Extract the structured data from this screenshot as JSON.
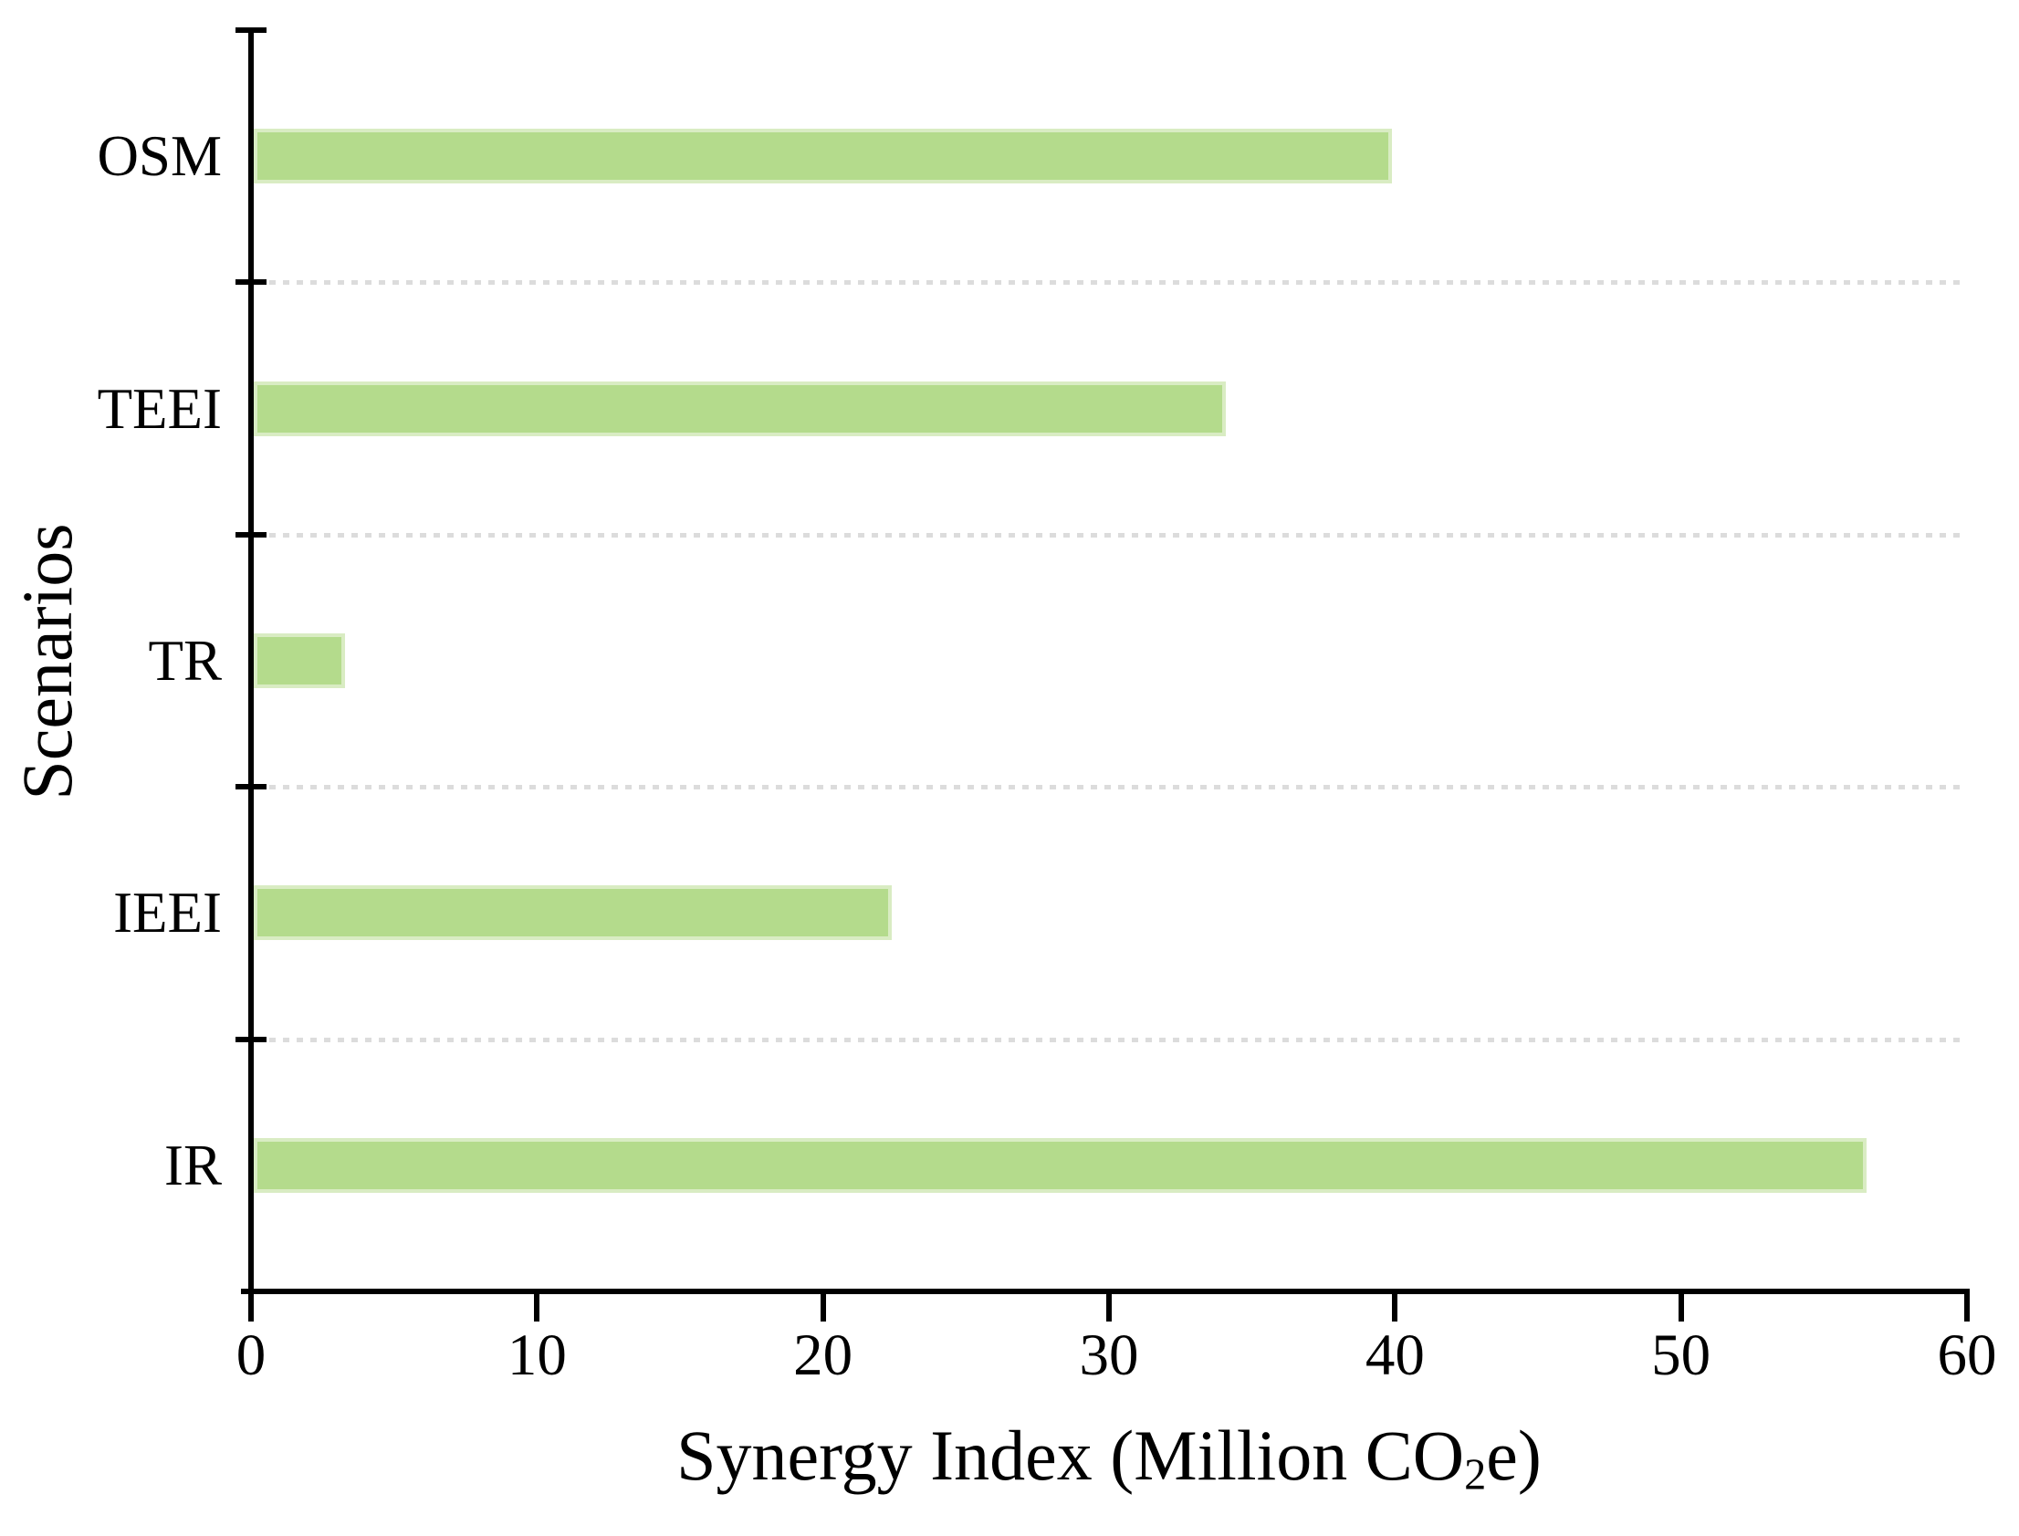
{
  "chart_data": {
    "type": "bar",
    "orientation": "horizontal",
    "title": "",
    "categories": [
      "OSM",
      "TEEI",
      "TR",
      "IEEI",
      "IR"
    ],
    "values": [
      39.9,
      34.1,
      3.3,
      22.4,
      56.5
    ],
    "xlabel": "Synergy Index (Million CO₂e)",
    "xlabel_parts": {
      "pre": "Synergy Index (Million CO",
      "sub": "2",
      "post": "e)"
    },
    "ylabel": "Scenarios",
    "xlim": [
      0,
      60
    ],
    "xticks": [
      "0",
      "10",
      "20",
      "30",
      "40",
      "50",
      "60"
    ],
    "grid": "dotted horizontal gridlines at category slot boundaries",
    "legend": "none",
    "colors": {
      "bar_fill": "#b4db8c",
      "bar_edge": "#d9ecc3",
      "gridline": "#dcdcdc",
      "axis": "#000000",
      "text": "#000000"
    }
  }
}
